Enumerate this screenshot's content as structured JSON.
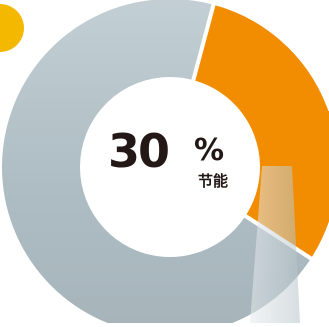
{
  "colors": {
    "accent": "#f28c00",
    "ring": "#b9c6cc",
    "ring_dark": "#9fb0b8",
    "center": "#ffffff",
    "text": "#231815",
    "badge": "#f5b800",
    "guide_line": "#f28c00"
  },
  "chart_data": {
    "type": "pie",
    "donut": true,
    "labels": [
      "节能",
      ""
    ],
    "values": [
      30,
      70
    ],
    "center_text": {
      "value": "30",
      "unit": "%",
      "label": "节能"
    }
  }
}
